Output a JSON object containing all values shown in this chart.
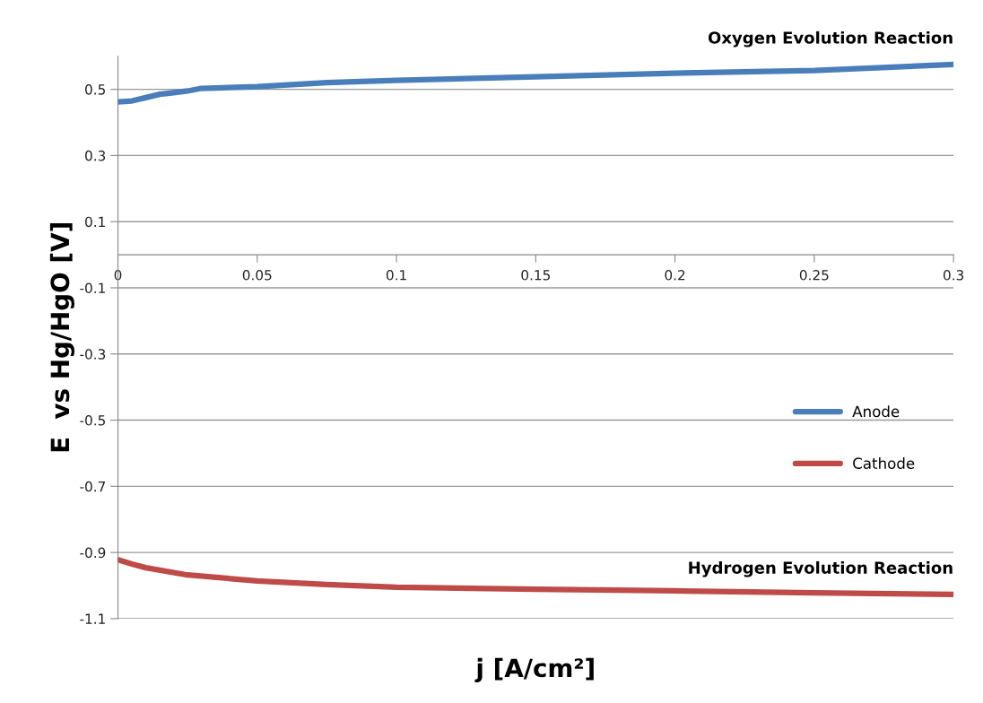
{
  "chart_data": {
    "type": "line",
    "xlabel": "j [A/cm²]",
    "ylabel": "E  vs Hg/HgO [V]",
    "xlim": [
      0,
      0.3
    ],
    "xticks": [
      {
        "value": 0,
        "label": "0"
      },
      0.05,
      0.1,
      0.15,
      0.2,
      0.25,
      0.3
    ],
    "ylim": [
      -1.1,
      0.6
    ],
    "yticks": [
      -1.1,
      -0.9,
      -0.7,
      -0.5,
      -0.3,
      -0.1,
      0.1,
      0.3,
      0.5
    ],
    "grid": "y",
    "legend": "right",
    "line_style": "solid",
    "series": [
      {
        "name": "Anode",
        "color": "#4a7ebb",
        "x": [
          0,
          0.005,
          0.01,
          0.015,
          0.02,
          0.025,
          0.03,
          0.05,
          0.075,
          0.1,
          0.15,
          0.2,
          0.25,
          0.3
        ],
        "values": [
          0.462,
          0.465,
          0.475,
          0.485,
          0.49,
          0.495,
          0.503,
          0.508,
          0.52,
          0.527,
          0.538,
          0.549,
          0.557,
          0.575
        ]
      },
      {
        "name": "Cathode",
        "color": "#be4b48",
        "x": [
          0,
          0.005,
          0.01,
          0.025,
          0.05,
          0.075,
          0.1,
          0.15,
          0.2,
          0.25,
          0.3
        ],
        "values": [
          -0.922,
          -0.935,
          -0.946,
          -0.968,
          -0.986,
          -0.997,
          -1.005,
          -1.011,
          -1.016,
          -1.022,
          -1.027
        ]
      }
    ],
    "annotations": [
      {
        "text": "Oxygen Evolution Reaction",
        "x": 0.3,
        "y": 0.575
      },
      {
        "text": "Hydrogen Evolution Reaction",
        "x": 0.3,
        "y": -1.027
      }
    ]
  }
}
